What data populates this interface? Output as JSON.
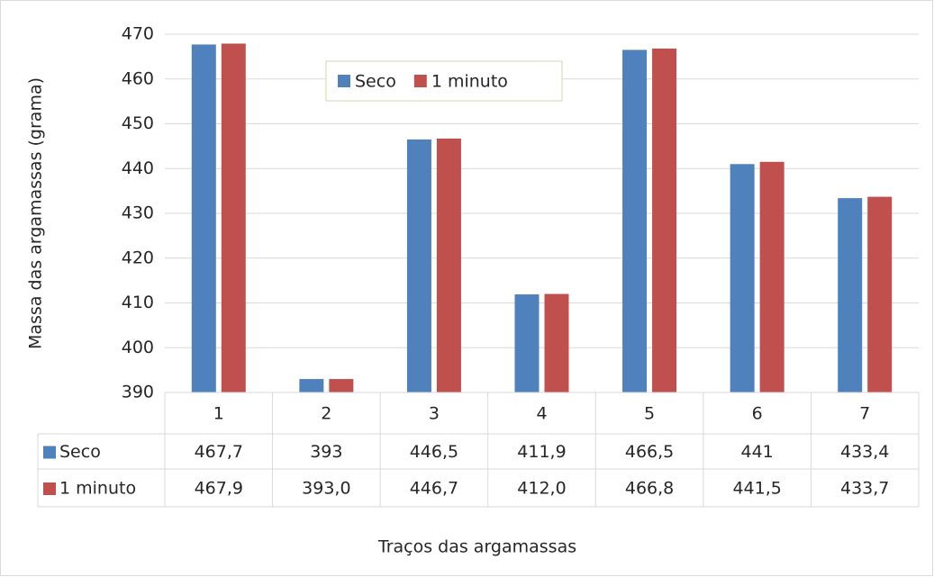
{
  "chart_data": {
    "type": "bar",
    "y_label": "Massa das argamassas (grama)",
    "x_label": "Traços das argamassas",
    "categories": [
      "1",
      "2",
      "3",
      "4",
      "5",
      "6",
      "7"
    ],
    "series": [
      {
        "name": "Seco",
        "color": "#4f81bd",
        "values": [
          467.7,
          393,
          446.5,
          411.9,
          466.5,
          441,
          433.4
        ],
        "value_labels": [
          "467,7",
          "393",
          "446,5",
          "411,9",
          "466,5",
          "441",
          "433,4"
        ]
      },
      {
        "name": "1 minuto",
        "color": "#c0504d",
        "values": [
          467.9,
          393.0,
          446.7,
          412.0,
          466.8,
          441.5,
          433.7
        ],
        "value_labels": [
          "467,9",
          "393,0",
          "446,7",
          "412,0",
          "466,8",
          "441,5",
          "433,7"
        ]
      }
    ],
    "ylim": [
      390,
      470
    ],
    "yticks": [
      390,
      400,
      410,
      420,
      430,
      440,
      450,
      460,
      470
    ],
    "grid": true,
    "legend": "top",
    "data_table": true
  }
}
